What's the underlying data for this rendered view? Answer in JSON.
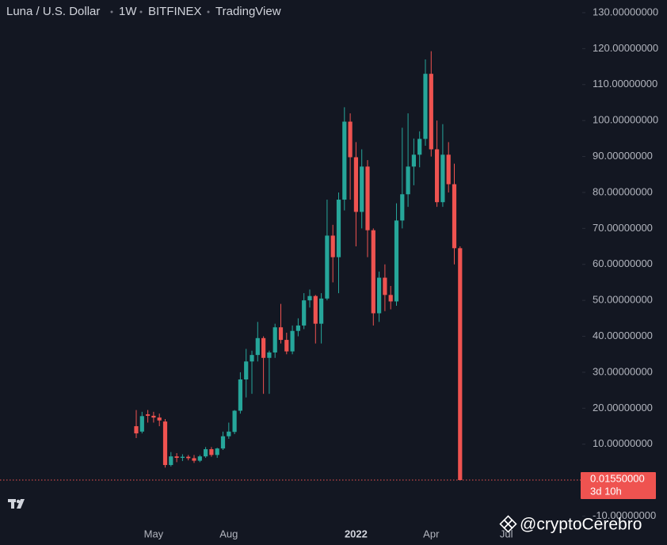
{
  "chart_data": {
    "type": "candlestick",
    "title": "Luna / U.S. Dollar",
    "interval": "1W",
    "exchange": "BITFINEX",
    "source": "TradingView",
    "watermark": "@cryptoCerebro",
    "categories": [
      null,
      null,
      null,
      "May",
      null,
      null,
      null,
      null,
      null,
      null,
      null,
      null,
      null,
      null,
      null,
      null,
      "Aug",
      null,
      null,
      null,
      null,
      null,
      null,
      null,
      null,
      null,
      null,
      null,
      null,
      null,
      null,
      null,
      null,
      null,
      null,
      null,
      null,
      null,
      "2022",
      null,
      null,
      null,
      null,
      null,
      null,
      null,
      null,
      null,
      null,
      null,
      null,
      "Apr",
      null,
      null,
      null,
      null,
      null,
      null,
      null,
      null,
      null,
      null,
      null,
      null,
      "Jul"
    ],
    "open": [
      15,
      13.5,
      18.3,
      17.9,
      17.4,
      16.3,
      4.2,
      6.6,
      6.2,
      6.5,
      6.1,
      5.4,
      6.6,
      8.6,
      7,
      8.8,
      12.2,
      13.4,
      19.3,
      28,
      33,
      34.8,
      39.5,
      34,
      35.5,
      42.5,
      39,
      35.8,
      41.5,
      43,
      50,
      51.2,
      43.5,
      50.5,
      68,
      62,
      78,
      99.7,
      89.8,
      74.6,
      87.2,
      69.5,
      46.4,
      56.3,
      51.5,
      49.7,
      72.2,
      79.5,
      87.2,
      90.5,
      94.9,
      113,
      92,
      77.3,
      90.5,
      82.3,
      64.5,
      null,
      null,
      null,
      null,
      null,
      null,
      null,
      null
    ],
    "high": [
      19.5,
      19,
      19.5,
      19,
      18.5,
      17,
      7.8,
      7.5,
      7.2,
      7,
      7,
      7,
      9.2,
      9.2,
      9,
      13.5,
      16,
      19.5,
      30,
      36.5,
      36,
      44,
      40,
      36,
      43.5,
      49,
      41,
      43,
      45,
      52,
      53,
      51.5,
      52,
      78,
      71,
      80,
      103.7,
      102,
      94,
      92,
      89,
      70,
      58,
      60,
      54,
      77,
      98,
      102,
      95,
      97,
      117,
      119.3,
      100,
      99,
      94,
      88,
      65,
      null,
      null,
      null,
      null,
      null,
      null,
      null,
      null
    ],
    "low": [
      11.7,
      13,
      16,
      16,
      15,
      3.5,
      3.8,
      5,
      5.3,
      5.5,
      4.8,
      5,
      6.2,
      6.5,
      6.2,
      8.4,
      11.5,
      12.8,
      18.5,
      23,
      24,
      33,
      24,
      24,
      34,
      38,
      35,
      35,
      40,
      42,
      48,
      38,
      38,
      50,
      55,
      52,
      75,
      78,
      65,
      70,
      62,
      43,
      44,
      47,
      47.5,
      48.5,
      70,
      76,
      82,
      87,
      93,
      90,
      76,
      76,
      80,
      60,
      0.0155,
      null,
      null,
      null,
      null,
      null,
      null,
      null,
      null
    ],
    "close": [
      13,
      17.8,
      17.9,
      17.4,
      16.6,
      4.2,
      6.6,
      6.2,
      6.5,
      6.1,
      5.4,
      6.6,
      8.6,
      7,
      8.8,
      12.2,
      13.5,
      19.3,
      28,
      33,
      34.8,
      39.5,
      34,
      35.5,
      42.5,
      39,
      35.8,
      41.5,
      43,
      50,
      51.2,
      43.5,
      50.5,
      68,
      62,
      78,
      99.7,
      89.8,
      74.6,
      87.2,
      69.5,
      46.4,
      56.3,
      51.5,
      49.7,
      72.2,
      79.5,
      87.2,
      90.5,
      94.9,
      113,
      92,
      77.3,
      90.5,
      82.3,
      64.5,
      0.0155,
      null,
      null,
      null,
      null,
      null,
      null,
      null,
      null
    ],
    "up_color": "#26a69a",
    "down_color": "#ef5350",
    "ylim": [
      -10,
      130
    ],
    "yticks": [
      {
        "value": -10,
        "label": "-10.00000000"
      },
      {
        "value": 10,
        "label": "10.00000000"
      },
      {
        "value": 20,
        "label": "20.00000000"
      },
      {
        "value": 30,
        "label": "30.00000000"
      },
      {
        "value": 40,
        "label": "40.00000000"
      },
      {
        "value": 50,
        "label": "50.00000000"
      },
      {
        "value": 60,
        "label": "60.00000000"
      },
      {
        "value": 70,
        "label": "70.00000000"
      },
      {
        "value": 80,
        "label": "80.00000000"
      },
      {
        "value": 90,
        "label": "90.00000000"
      },
      {
        "value": 100,
        "label": "100.00000000"
      },
      {
        "value": 110,
        "label": "110.00000000"
      },
      {
        "value": 120,
        "label": "120.00000000"
      },
      {
        "value": 130,
        "label": "130.00000000"
      }
    ],
    "last_price": {
      "value": 0.0155,
      "label": "0.01550000"
    },
    "countdown": "3d 10h"
  }
}
